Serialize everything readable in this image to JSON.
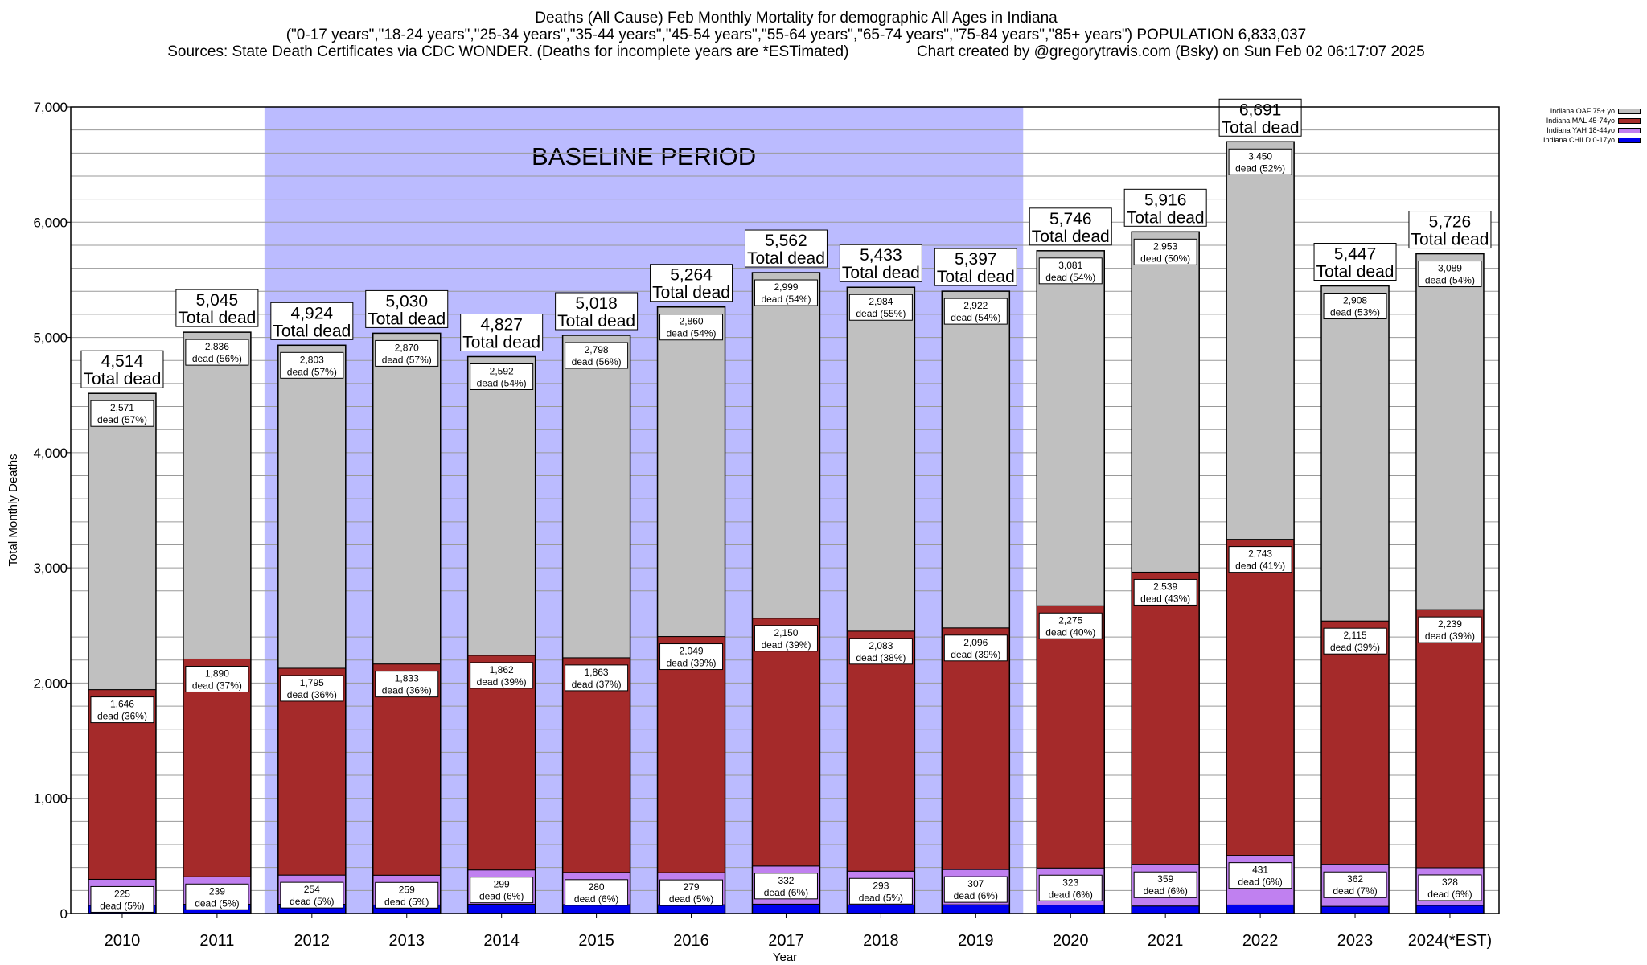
{
  "titles": {
    "line1": "Deaths (All Cause) Feb Monthly Mortality for demographic All Ages in Indiana",
    "line2": "(\"0-17 years\",\"18-24 years\",\"25-34 years\",\"35-44 years\",\"45-54 years\",\"55-64 years\",\"65-74 years\",\"75-84 years\",\"85+ years\") POPULATION 6,833,037",
    "line3": "Sources: State Death Certificates via CDC WONDER. (Deaths for incomplete years are *ESTimated)                Chart created by @gregorytravis.com (Bsky) on Sun Feb 02 06:17:07 2025"
  },
  "chart_data": {
    "type": "bar",
    "stacked": true,
    "xlabel": "Year",
    "ylabel": "Total Monthly Deaths",
    "ylim": [
      0,
      7000
    ],
    "yticks": [
      "0",
      "1,000",
      "2,000",
      "3,000",
      "4,000",
      "5,000",
      "6,000",
      "7,000"
    ],
    "ytick_values": [
      0,
      1000,
      2000,
      3000,
      4000,
      5000,
      6000,
      7000
    ],
    "grid": true,
    "legend_position": "top-right",
    "baseline_label": "BASELINE PERIOD",
    "baseline_range": [
      "2012",
      "2019"
    ],
    "total_suffix": "Total dead",
    "categories": [
      "2010",
      "2011",
      "2012",
      "2013",
      "2014",
      "2015",
      "2016",
      "2017",
      "2018",
      "2019",
      "2020",
      "2021",
      "2022",
      "2023",
      "2024(*EST)"
    ],
    "totals": [
      4514,
      5045,
      4924,
      5030,
      4827,
      5018,
      5264,
      5562,
      5433,
      5397,
      5746,
      5916,
      6691,
      5447,
      5726
    ],
    "total_labels": [
      "4,514",
      "5,045",
      "4,924",
      "5,030",
      "4,827",
      "5,018",
      "5,264",
      "5,562",
      "5,433",
      "5,397",
      "5,746",
      "5,916",
      "6,691",
      "5,447",
      "5,726"
    ],
    "series": [
      {
        "name": "Indiana CHILD 0-17yo",
        "color": "#0000ee",
        "values": [
          72,
          80,
          80,
          74,
          80,
          77,
          76,
          81,
          75,
          76,
          73,
          65,
          74,
          62,
          70
        ]
      },
      {
        "name": "Indiana YAH 18-44yo",
        "color": "#c080f0",
        "values": [
          225,
          239,
          254,
          259,
          299,
          280,
          279,
          332,
          293,
          307,
          323,
          359,
          431,
          362,
          328
        ],
        "labels": [
          "225",
          "239",
          "254",
          "259",
          "299",
          "280",
          "279",
          "332",
          "293",
          "307",
          "323",
          "359",
          "431",
          "362",
          "328"
        ],
        "pcts": [
          "dead (5%)",
          "dead (5%)",
          "dead (5%)",
          "dead (5%)",
          "dead (6%)",
          "dead (6%)",
          "dead (5%)",
          "dead (6%)",
          "dead (5%)",
          "dead (6%)",
          "dead (6%)",
          "dead (6%)",
          "dead (6%)",
          "dead (7%)",
          "dead (6%)"
        ]
      },
      {
        "name": "Indiana MAL 45-74yo",
        "color": "#a52a2a",
        "values": [
          1646,
          1890,
          1795,
          1833,
          1862,
          1863,
          2049,
          2150,
          2083,
          2096,
          2275,
          2539,
          2743,
          2115,
          2239
        ],
        "labels": [
          "1,646",
          "1,890",
          "1,795",
          "1,833",
          "1,862",
          "1,863",
          "2,049",
          "2,150",
          "2,083",
          "2,096",
          "2,275",
          "2,539",
          "2,743",
          "2,115",
          "2,239"
        ],
        "pcts": [
          "dead (36%)",
          "dead (37%)",
          "dead (36%)",
          "dead (36%)",
          "dead (39%)",
          "dead (37%)",
          "dead (39%)",
          "dead (39%)",
          "dead (38%)",
          "dead (39%)",
          "dead (40%)",
          "dead (43%)",
          "dead (41%)",
          "dead (39%)",
          "dead (39%)"
        ]
      },
      {
        "name": "Indiana OAF 75+ yo",
        "color": "#c0c0c0",
        "values": [
          2571,
          2836,
          2803,
          2870,
          2592,
          2798,
          2860,
          2999,
          2984,
          2922,
          3081,
          2953,
          3450,
          2908,
          3089
        ],
        "labels": [
          "2,571",
          "2,836",
          "2,803",
          "2,870",
          "2,592",
          "2,798",
          "2,860",
          "2,999",
          "2,984",
          "2,922",
          "3,081",
          "2,953",
          "3,450",
          "2,908",
          "3,089"
        ],
        "pcts": [
          "dead (57%)",
          "dead (56%)",
          "dead (57%)",
          "dead (57%)",
          "dead (54%)",
          "dead (56%)",
          "dead (54%)",
          "dead (54%)",
          "dead (55%)",
          "dead (54%)",
          "dead (54%)",
          "dead (50%)",
          "dead (52%)",
          "dead (53%)",
          "dead (54%)"
        ]
      }
    ],
    "legend_order": [
      "Indiana OAF 75+ yo",
      "Indiana MAL 45-74yo",
      "Indiana YAH 18-44yo",
      "Indiana CHILD 0-17yo"
    ]
  }
}
